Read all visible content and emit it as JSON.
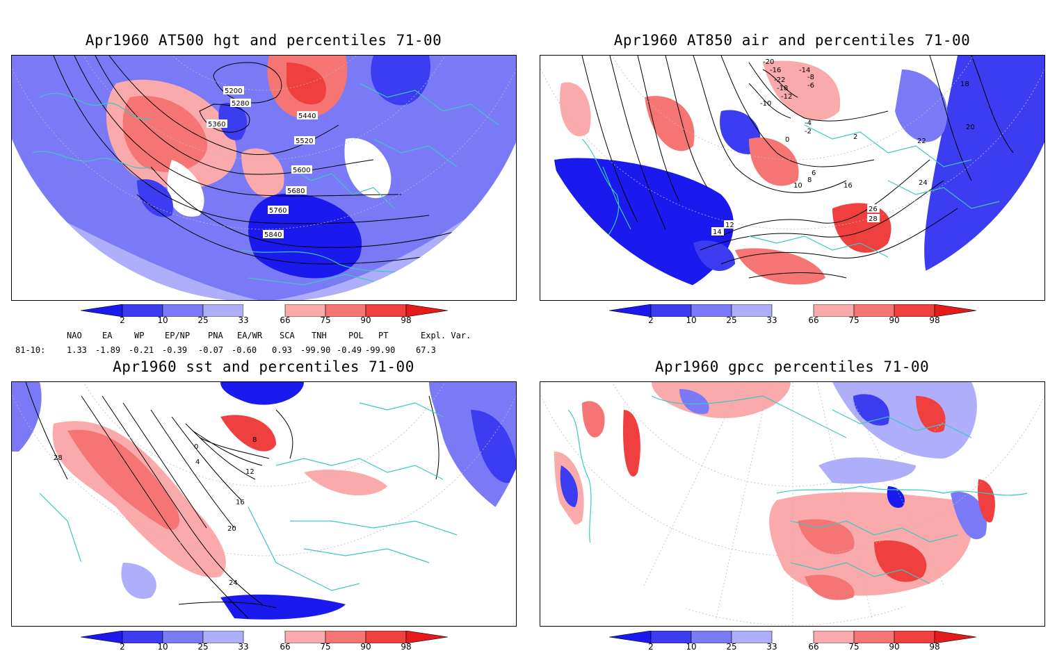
{
  "panels": [
    {
      "title": "Apr1960 AT500 hgt and percentiles 71-00",
      "contour_labels": [
        "5200",
        "5280",
        "5360",
        "5440",
        "5520",
        "5600",
        "5680",
        "5760",
        "5840"
      ]
    },
    {
      "title": "Apr1960 AT850 air and percentiles 71-00",
      "contour_labels": [
        "-20",
        "-16",
        "-14",
        "-22",
        "-18",
        "-12",
        "-10",
        "-8",
        "-6",
        "-4",
        "-2",
        "0",
        "2",
        "6",
        "8",
        "10",
        "12",
        "14",
        "16",
        "18",
        "20",
        "22",
        "24",
        "26",
        "28"
      ]
    },
    {
      "title": "Apr1960 sst and percentiles 71-00",
      "contour_labels": [
        "0",
        "4",
        "8",
        "12",
        "16",
        "20",
        "24",
        "28"
      ]
    },
    {
      "title": "Apr1960 gpcc percentiles 71-00",
      "contour_labels": []
    }
  ],
  "colorbar": {
    "ticks": [
      "2",
      "10",
      "25",
      "33",
      "66",
      "75",
      "90",
      "98"
    ],
    "colors": [
      "#1a1aee",
      "#3c3cf0",
      "#7a7af6",
      "#aeaefa",
      "#ffffff",
      "#faaaaa",
      "#f57575",
      "#ef3f3f",
      "#e51a1a"
    ]
  },
  "indices": {
    "headers": [
      "NAO",
      "EA",
      "WP",
      "EP/NP",
      "PNA",
      "EA/WR",
      "SCA",
      "TNH",
      "POL",
      "PT",
      "Expl. Var."
    ],
    "period": "81-10:",
    "values": [
      "1.33",
      "-1.89",
      "-0.21",
      "-0.39",
      "-0.07",
      "-0.60",
      "0.93",
      "-99.90",
      "-0.49",
      "-99.90",
      "67.3"
    ]
  }
}
